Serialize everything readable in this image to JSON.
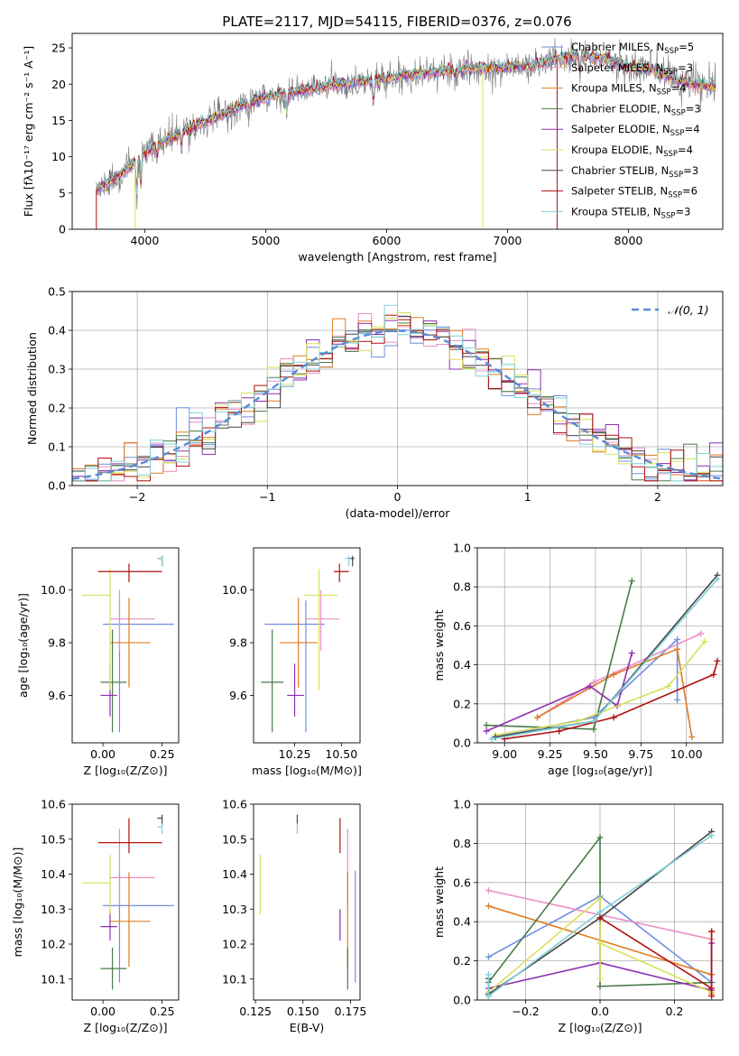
{
  "figure_title": "PLATE=2117, MJD=54115, FIBERID=0376, z=0.076",
  "colors": [
    "#6f8fe0",
    "#e98fc4",
    "#e07b22",
    "#4a7a4a",
    "#8e2fb0",
    "#d7e05a",
    "#444444",
    "#b01010",
    "#7fd0d8"
  ],
  "chart_data": [
    {
      "id": "spectrum",
      "type": "line",
      "title": "PLATE=2117, MJD=54115, FIBERID=0376, z=0.076",
      "xlabel": "wavelength [Angstrom, rest frame]",
      "ylabel": "Flux [fλ10⁻¹⁷ erg cm⁻² s⁻¹ A⁻¹]",
      "xlim": [
        3400,
        8780
      ],
      "ylim": [
        0,
        27
      ],
      "xticks": [
        4000,
        5000,
        6000,
        7000,
        8000
      ],
      "yticks": [
        0,
        5,
        10,
        15,
        20,
        25
      ],
      "legend_position": "upper-right",
      "legend": [
        {
          "name": "Chabrier MILES",
          "nssp": "5"
        },
        {
          "name": "Salpeter MILES",
          "nssp": "3"
        },
        {
          "name": "Kroupa MILES",
          "nssp": "4"
        },
        {
          "name": "Chabrier ELODIE",
          "nssp": "3"
        },
        {
          "name": "Salpeter ELODIE",
          "nssp": "4"
        },
        {
          "name": "Kroupa ELODIE",
          "nssp": "4"
        },
        {
          "name": "Chabrier STELIB",
          "nssp": "3"
        },
        {
          "name": "Salpeter STELIB",
          "nssp": "6"
        },
        {
          "name": "Kroupa STELIB",
          "nssp": "3"
        }
      ],
      "continuum": {
        "x": [
          3600,
          3800,
          4000,
          4200,
          4500,
          4800,
          5000,
          5200,
          5500,
          5800,
          6000,
          6300,
          6500,
          6800,
          7000,
          7200,
          7400,
          7600,
          7800,
          8000,
          8200,
          8400,
          8700
        ],
        "y": [
          5.5,
          7.5,
          10.5,
          12.5,
          14.8,
          17.0,
          18.2,
          18.8,
          19.7,
          20.3,
          20.8,
          21.6,
          21.8,
          22.2,
          22.3,
          22.5,
          23.5,
          24.0,
          23.5,
          22.3,
          22.0,
          20.5,
          19.5
        ]
      }
    },
    {
      "id": "residuals",
      "type": "histogram",
      "xlabel": "(data-model)/error",
      "ylabel": "Normed distribution",
      "xlim": [
        -2.5,
        2.5
      ],
      "ylim": [
        0,
        0.5
      ],
      "xticks": [
        -2,
        -1,
        0,
        1,
        2
      ],
      "yticks": [
        0.0,
        0.1,
        0.2,
        0.3,
        0.4,
        0.5
      ],
      "grid": true,
      "legend_position": "upper-right",
      "reference_label": "𝒩(0, 1)"
    },
    {
      "id": "age-vs-z",
      "type": "errorbar",
      "xlabel": "Z [log₁₀(Z/Z⊙)]",
      "ylabel": "age  [log₁₀(age/yr)]",
      "xlim": [
        -0.13,
        0.32
      ],
      "ylim": [
        9.42,
        10.16
      ],
      "xticks": [
        0.0,
        0.25
      ],
      "yticks": [
        9.6,
        9.8,
        10.0
      ],
      "points": [
        {
          "x": 0.07,
          "xerr": [
            0.07,
            0.23
          ],
          "y": 9.87,
          "yerr": [
            0.41,
            0.09
          ]
        },
        {
          "x": 0.07,
          "xerr": [
            0.04,
            0.15
          ],
          "y": 9.89,
          "yerr": [
            0.12,
            0.11
          ]
        },
        {
          "x": 0.11,
          "xerr": [
            0.08,
            0.09
          ],
          "y": 9.8,
          "yerr": [
            0.17,
            0.17
          ]
        },
        {
          "x": 0.04,
          "xerr": [
            0.05,
            0.06
          ],
          "y": 9.65,
          "yerr": [
            0.19,
            0.2
          ]
        },
        {
          "x": 0.03,
          "xerr": [
            0.04,
            0.03
          ],
          "y": 9.6,
          "yerr": [
            0.08,
            0.12
          ]
        },
        {
          "x": 0.03,
          "xerr": [
            0.12,
            0.0
          ],
          "y": 9.98,
          "yerr": [
            0.36,
            0.1
          ]
        },
        {
          "x": 0.25,
          "xerr": [
            0.02,
            0.0
          ],
          "y": 10.12,
          "yerr": [
            0.03,
            0.01
          ]
        },
        {
          "x": 0.11,
          "xerr": [
            0.13,
            0.14
          ],
          "y": 10.07,
          "yerr": [
            0.04,
            0.03
          ]
        },
        {
          "x": 0.25,
          "xerr": [
            0.02,
            0.0
          ],
          "y": 10.12,
          "yerr": [
            0.03,
            0.01
          ]
        }
      ]
    },
    {
      "id": "age-vs-mass",
      "type": "errorbar",
      "xlabel": "mass [log₁₀(M/M⊙)]",
      "ylabel": "",
      "xlim": [
        10.03,
        10.6
      ],
      "ylim": [
        9.42,
        10.16
      ],
      "xticks": [
        10.25,
        10.5
      ],
      "yticks": [
        9.6,
        9.8,
        10.0
      ],
      "points": [
        {
          "x": 10.31,
          "xerr": [
            0.22,
            0.1
          ],
          "y": 9.87,
          "yerr": [
            0.41,
            0.09
          ]
        },
        {
          "x": 10.39,
          "xerr": [
            0.08,
            0.1
          ],
          "y": 9.89,
          "yerr": [
            0.12,
            0.11
          ]
        },
        {
          "x": 10.27,
          "xerr": [
            0.1,
            0.1
          ],
          "y": 9.8,
          "yerr": [
            0.17,
            0.17
          ]
        },
        {
          "x": 10.13,
          "xerr": [
            0.06,
            0.06
          ],
          "y": 9.65,
          "yerr": [
            0.19,
            0.2
          ]
        },
        {
          "x": 10.25,
          "xerr": [
            0.04,
            0.05
          ],
          "y": 9.6,
          "yerr": [
            0.08,
            0.12
          ]
        },
        {
          "x": 10.38,
          "xerr": [
            0.08,
            0.1
          ],
          "y": 9.98,
          "yerr": [
            0.36,
            0.1
          ]
        },
        {
          "x": 10.56,
          "xerr": [
            0.02,
            0.01
          ],
          "y": 10.12,
          "yerr": [
            0.03,
            0.01
          ]
        },
        {
          "x": 10.49,
          "xerr": [
            0.03,
            0.05
          ],
          "y": 10.07,
          "yerr": [
            0.04,
            0.03
          ]
        },
        {
          "x": 10.54,
          "xerr": [
            0.02,
            0.01
          ],
          "y": 10.12,
          "yerr": [
            0.03,
            0.01
          ]
        }
      ]
    },
    {
      "id": "weight-vs-age",
      "type": "line",
      "xlabel": "age  [log₁₀(age/yr)]",
      "ylabel": "mass weight",
      "xlim": [
        8.85,
        10.2
      ],
      "ylim": [
        0,
        1
      ],
      "xticks": [
        9.0,
        9.25,
        9.5,
        9.75,
        10.0
      ],
      "yticks": [
        0.0,
        0.2,
        0.4,
        0.6,
        0.8,
        1.0
      ],
      "grid": true,
      "series": [
        {
          "x": [
            8.95,
            9.49,
            9.95,
            9.95
          ],
          "y": [
            0.03,
            0.13,
            0.53,
            0.22
          ]
        },
        {
          "x": [
            9.18,
            9.49,
            10.08
          ],
          "y": [
            0.13,
            0.31,
            0.56
          ]
        },
        {
          "x": [
            9.18,
            9.6,
            9.95,
            10.03
          ],
          "y": [
            0.13,
            0.35,
            0.48,
            0.03
          ]
        },
        {
          "x": [
            8.9,
            9.49,
            9.7
          ],
          "y": [
            0.09,
            0.07,
            0.83
          ]
        },
        {
          "x": [
            8.9,
            9.47,
            9.62,
            9.7
          ],
          "y": [
            0.06,
            0.29,
            0.19,
            0.46
          ]
        },
        {
          "x": [
            8.95,
            9.4,
            9.9,
            10.1
          ],
          "y": [
            0.04,
            0.11,
            0.29,
            0.52
          ]
        },
        {
          "x": [
            8.95,
            9.49,
            10.17
          ],
          "y": [
            0.03,
            0.11,
            0.86
          ]
        },
        {
          "x": [
            9.0,
            9.3,
            9.6,
            10.15,
            10.17
          ],
          "y": [
            0.02,
            0.06,
            0.13,
            0.35,
            0.42
          ]
        },
        {
          "x": [
            8.93,
            9.49,
            10.17
          ],
          "y": [
            0.02,
            0.11,
            0.84
          ]
        }
      ]
    },
    {
      "id": "mass-vs-z",
      "type": "errorbar",
      "xlabel": "Z [log₁₀(Z/Z⊙)]",
      "ylabel": "mass [log₁₀(M/M⊙)]",
      "xlim": [
        -0.13,
        0.32
      ],
      "ylim": [
        10.04,
        10.6
      ],
      "xticks": [
        0.0,
        0.25
      ],
      "yticks": [
        10.1,
        10.2,
        10.3,
        10.4,
        10.5,
        10.6
      ],
      "points": [
        {
          "x": 0.07,
          "xerr": [
            0.07,
            0.23
          ],
          "y": 10.31,
          "yerr": [
            0.22,
            0.1
          ]
        },
        {
          "x": 0.07,
          "xerr": [
            0.04,
            0.15
          ],
          "y": 10.39,
          "yerr": [
            0.08,
            0.14
          ]
        },
        {
          "x": 0.11,
          "xerr": [
            0.08,
            0.09
          ],
          "y": 10.265,
          "yerr": [
            0.13,
            0.14
          ]
        },
        {
          "x": 0.04,
          "xerr": [
            0.05,
            0.06
          ],
          "y": 10.13,
          "yerr": [
            0.06,
            0.06
          ]
        },
        {
          "x": 0.03,
          "xerr": [
            0.04,
            0.03
          ],
          "y": 10.25,
          "yerr": [
            0.04,
            0.05
          ]
        },
        {
          "x": 0.03,
          "xerr": [
            0.12,
            0.0
          ],
          "y": 10.375,
          "yerr": [
            0.09,
            0.08
          ]
        },
        {
          "x": 0.25,
          "xerr": [
            0.02,
            0.0
          ],
          "y": 10.56,
          "yerr": [
            0.02,
            0.01
          ]
        },
        {
          "x": 0.11,
          "xerr": [
            0.13,
            0.14
          ],
          "y": 10.49,
          "yerr": [
            0.03,
            0.07
          ]
        },
        {
          "x": 0.25,
          "xerr": [
            0.02,
            0.0
          ],
          "y": 10.535,
          "yerr": [
            0.02,
            0.01
          ]
        }
      ]
    },
    {
      "id": "mass-vs-ebv",
      "type": "errorbar",
      "xlabel": "E(B-V)",
      "ylabel": "",
      "xlim": [
        0.124,
        0.18
      ],
      "ylim": [
        10.04,
        10.6
      ],
      "xticks": [
        0.125,
        0.15,
        0.175
      ],
      "yticks": [
        10.1,
        10.2,
        10.3,
        10.4,
        10.5,
        10.6
      ],
      "points": [
        {
          "x": 0.1775,
          "y": 10.31,
          "yerr": [
            0.22,
            0.1
          ]
        },
        {
          "x": 0.1735,
          "y": 10.39,
          "yerr": [
            0.08,
            0.14
          ]
        },
        {
          "x": 0.1735,
          "y": 10.265,
          "yerr": [
            0.13,
            0.14
          ]
        },
        {
          "x": 0.1735,
          "y": 10.13,
          "yerr": [
            0.06,
            0.06
          ]
        },
        {
          "x": 0.1695,
          "y": 10.25,
          "yerr": [
            0.04,
            0.05
          ]
        },
        {
          "x": 0.1275,
          "y": 10.375,
          "yerr": [
            0.09,
            0.08
          ]
        },
        {
          "x": 0.147,
          "y": 10.56,
          "yerr": [
            0.02,
            0.01
          ]
        },
        {
          "x": 0.1695,
          "y": 10.49,
          "yerr": [
            0.03,
            0.07
          ]
        },
        {
          "x": 0.147,
          "y": 10.535,
          "yerr": [
            0.02,
            0.01
          ]
        }
      ]
    },
    {
      "id": "weight-vs-z",
      "type": "line",
      "xlabel": "Z [log₁₀(Z/Z⊙)]",
      "ylabel": "mass weight",
      "xlim": [
        -0.33,
        0.33
      ],
      "ylim": [
        0,
        1
      ],
      "xticks": [
        -0.2,
        0.0,
        0.2
      ],
      "yticks": [
        0.0,
        0.2,
        0.4,
        0.6,
        0.8,
        1.0
      ],
      "grid": true,
      "series": [
        {
          "x": [
            -0.3,
            0.0,
            0.3,
            0.3
          ],
          "y": [
            0.22,
            0.53,
            0.09,
            0.13
          ]
        },
        {
          "x": [
            -0.3,
            0.3,
            0.3
          ],
          "y": [
            0.56,
            0.31,
            0.13
          ]
        },
        {
          "x": [
            -0.3,
            0.3,
            0.3,
            0.3
          ],
          "y": [
            0.48,
            0.13,
            0.03,
            0.35
          ]
        },
        {
          "x": [
            -0.3,
            -0.3,
            0.0,
            0.0,
            0.3
          ],
          "y": [
            0.02,
            0.09,
            0.83,
            0.07,
            0.09
          ]
        },
        {
          "x": [
            -0.3,
            0.0,
            0.3,
            0.3
          ],
          "y": [
            0.06,
            0.19,
            0.05,
            0.29
          ]
        },
        {
          "x": [
            -0.3,
            0.0,
            0.0,
            0.0,
            0.3
          ],
          "y": [
            0.04,
            0.52,
            0.11,
            0.29,
            0.04
          ]
        },
        {
          "x": [
            -0.3,
            -0.3,
            0.0,
            0.3
          ],
          "y": [
            0.11,
            0.03,
            0.42,
            0.86
          ]
        },
        {
          "x": [
            0.0,
            0.3,
            0.3,
            0.3
          ],
          "y": [
            0.42,
            0.06,
            0.35,
            0.02
          ]
        },
        {
          "x": [
            -0.3,
            -0.3,
            0.0,
            0.3
          ],
          "y": [
            0.13,
            0.02,
            0.45,
            0.84
          ]
        }
      ]
    }
  ]
}
